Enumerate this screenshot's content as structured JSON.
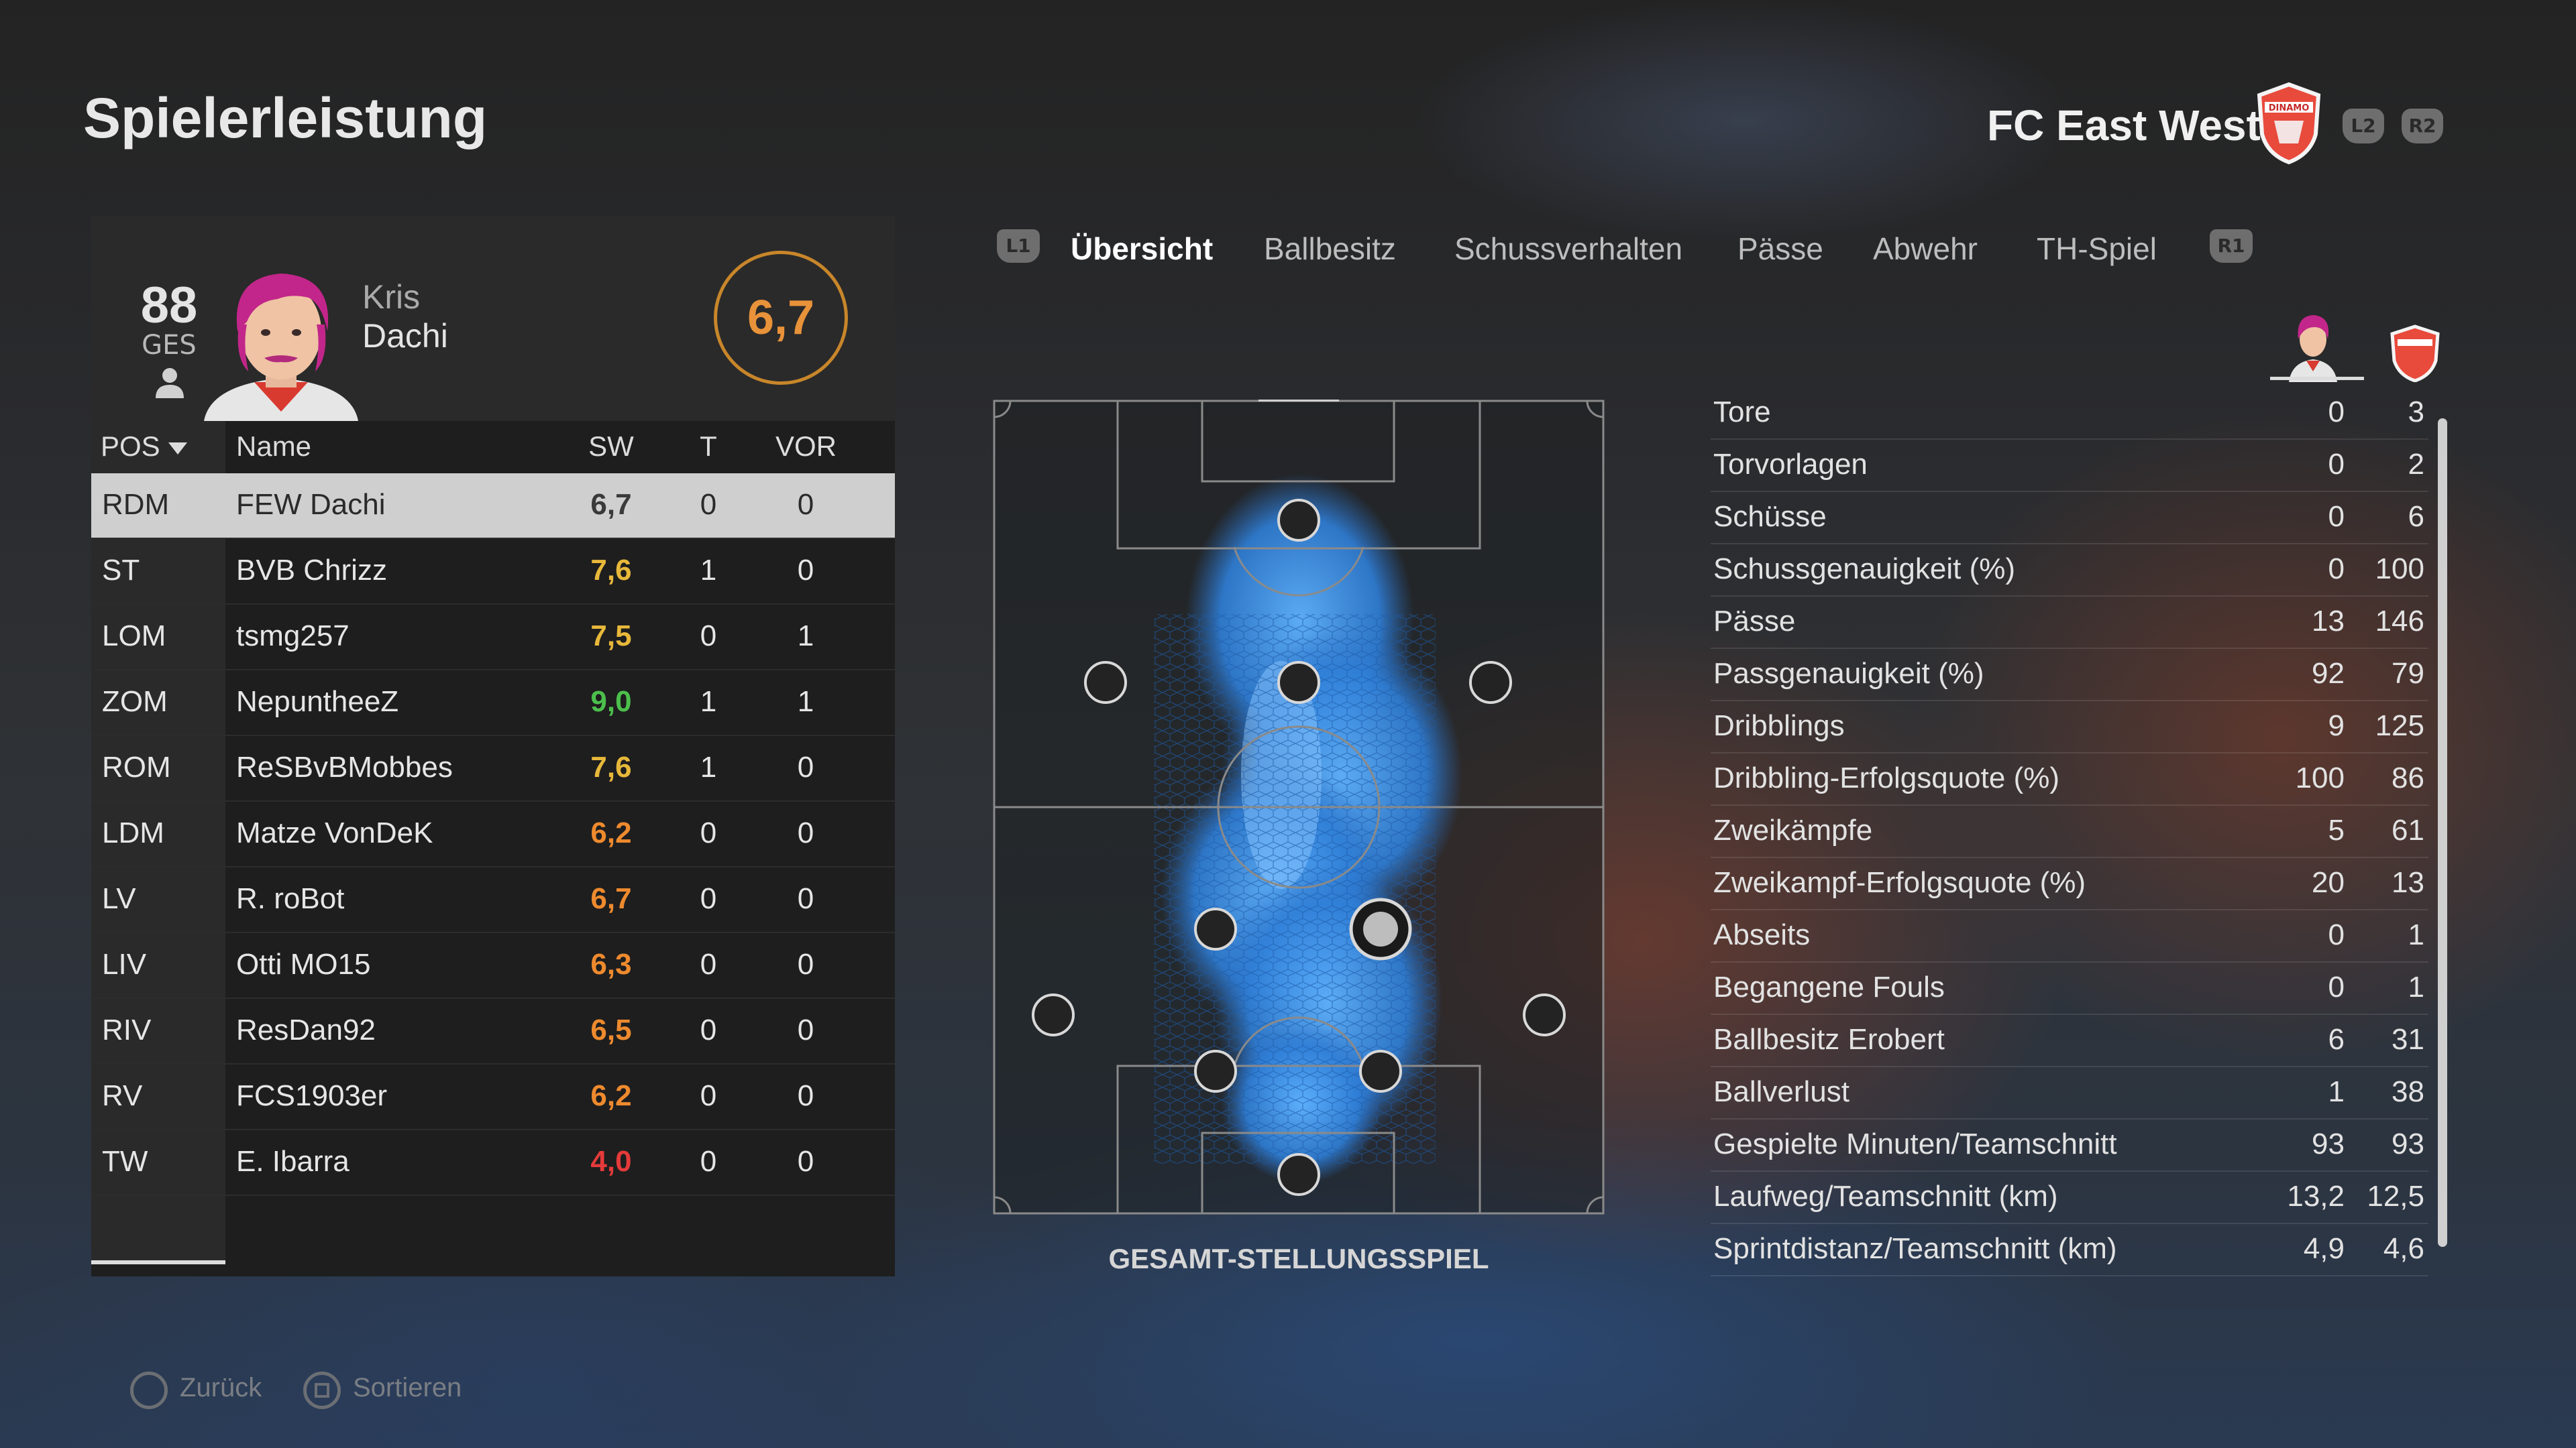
{
  "page_title": "Spielerleistung",
  "club": {
    "name": "FC East West",
    "crest_text": "DINAMO",
    "buttons": [
      "L2",
      "R2"
    ]
  },
  "player": {
    "overall": "88",
    "overall_label": "GES",
    "first_name": "Kris",
    "last_name": "Dachi",
    "rating": "6,7",
    "rating_color": "#e8923a"
  },
  "table": {
    "headers": {
      "pos": "POS",
      "name": "Name",
      "sw": "SW",
      "t": "T",
      "vor": "VOR"
    },
    "rows": [
      {
        "pos": "RDM",
        "name": "FEW Dachi",
        "sw": "6,7",
        "t": "0",
        "vor": "0",
        "color": "#3a3a3a"
      },
      {
        "pos": "ST",
        "name": "BVB Chrizz",
        "sw": "7,6",
        "t": "1",
        "vor": "0",
        "color": "#e8b83a"
      },
      {
        "pos": "LOM",
        "name": "tsmg257",
        "sw": "7,5",
        "t": "0",
        "vor": "1",
        "color": "#e8b83a"
      },
      {
        "pos": "ZOM",
        "name": "NepuntheeZ",
        "sw": "9,0",
        "t": "1",
        "vor": "1",
        "color": "#4cbf4c"
      },
      {
        "pos": "ROM",
        "name": "ReSBvBMobbes",
        "sw": "7,6",
        "t": "1",
        "vor": "0",
        "color": "#e8b83a"
      },
      {
        "pos": "LDM",
        "name": "Matze VonDeK",
        "sw": "6,2",
        "t": "0",
        "vor": "0",
        "color": "#ee8a2e"
      },
      {
        "pos": "LV",
        "name": "R. roBot",
        "sw": "6,7",
        "t": "0",
        "vor": "0",
        "color": "#ee8a2e"
      },
      {
        "pos": "LIV",
        "name": "Otti MO15",
        "sw": "6,3",
        "t": "0",
        "vor": "0",
        "color": "#ee8a2e"
      },
      {
        "pos": "RIV",
        "name": "ResDan92",
        "sw": "6,5",
        "t": "0",
        "vor": "0",
        "color": "#ee8a2e"
      },
      {
        "pos": "RV",
        "name": "FCS1903er",
        "sw": "6,2",
        "t": "0",
        "vor": "0",
        "color": "#ee8a2e"
      },
      {
        "pos": "TW",
        "name": "E. Ibarra",
        "sw": "4,0",
        "t": "0",
        "vor": "0",
        "color": "#e53a3a"
      }
    ]
  },
  "tabs": {
    "left_button": "L1",
    "right_button": "R1",
    "items": [
      "Übersicht",
      "Ballbesitz",
      "Schussverhalten",
      "Pässe",
      "Abwehr",
      "TH-Spiel"
    ]
  },
  "pitch_label": "GESAMT-STELLUNGSSPIEL",
  "stats": [
    {
      "label": "Tore",
      "own": "0",
      "team": "3"
    },
    {
      "label": "Torvorlagen",
      "own": "0",
      "team": "2"
    },
    {
      "label": "Schüsse",
      "own": "0",
      "team": "6"
    },
    {
      "label": "Schussgenauigkeit (%)",
      "own": "0",
      "team": "100"
    },
    {
      "label": "Pässe",
      "own": "13",
      "team": "146"
    },
    {
      "label": "Passgenauigkeit (%)",
      "own": "92",
      "team": "79"
    },
    {
      "label": "Dribblings",
      "own": "9",
      "team": "125"
    },
    {
      "label": "Dribbling-Erfolgsquote (%)",
      "own": "100",
      "team": "86"
    },
    {
      "label": "Zweikämpfe",
      "own": "5",
      "team": "61"
    },
    {
      "label": "Zweikampf-Erfolgsquote (%)",
      "own": "20",
      "team": "13"
    },
    {
      "label": "Abseits",
      "own": "0",
      "team": "1"
    },
    {
      "label": "Begangene Fouls",
      "own": "0",
      "team": "1"
    },
    {
      "label": "Ballbesitz Erobert",
      "own": "6",
      "team": "31"
    },
    {
      "label": "Ballverlust",
      "own": "1",
      "team": "38"
    },
    {
      "label": "Gespielte Minuten/Teamschnitt",
      "own": "93",
      "team": "93"
    },
    {
      "label": "Laufweg/Teamschnitt (km)",
      "own": "13,2",
      "team": "12,5"
    },
    {
      "label": "Sprintdistanz/Teamschnitt (km)",
      "own": "4,9",
      "team": "4,6"
    }
  ],
  "footer": {
    "back": "Zurück",
    "sort": "Sortieren"
  }
}
